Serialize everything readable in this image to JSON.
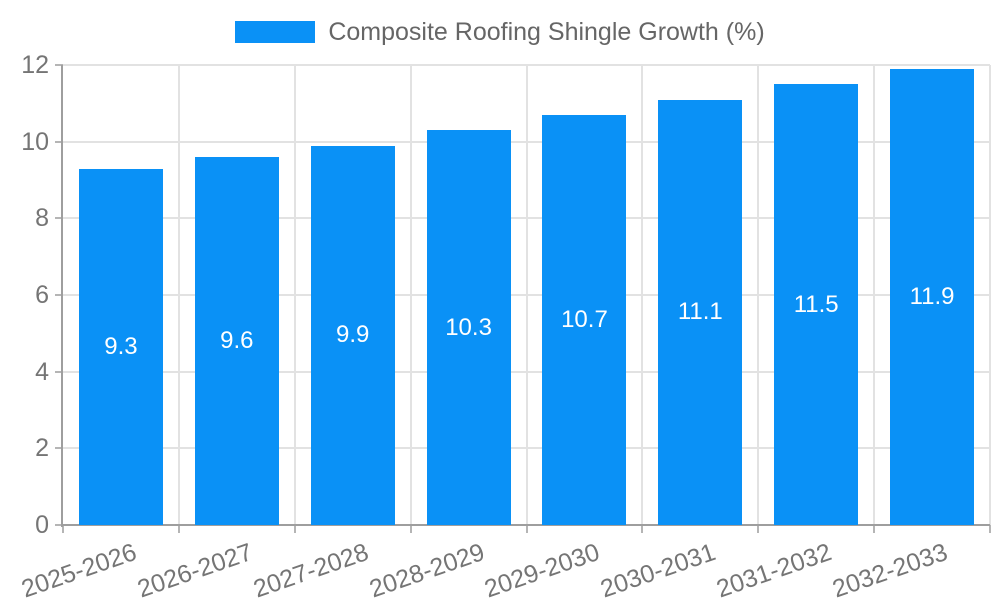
{
  "legend": {
    "label": "Composite Roofing Shingle Growth (%)"
  },
  "chart_data": {
    "type": "bar",
    "title": "Composite Roofing Shingle Growth (%)",
    "legend_position": "top",
    "categories": [
      "2025-2026",
      "2026-2027",
      "2027-2028",
      "2028-2029",
      "2029-2030",
      "2030-2031",
      "2031-2032",
      "2032-2033"
    ],
    "values": [
      9.3,
      9.6,
      9.9,
      10.3,
      10.7,
      11.1,
      11.5,
      11.9
    ],
    "value_labels": [
      "9.3",
      "9.6",
      "9.9",
      "10.3",
      "10.7",
      "11.1",
      "11.5",
      "11.9"
    ],
    "xlabel": "",
    "ylabel": "",
    "ylim": [
      0,
      12
    ],
    "yticks": [
      0,
      2,
      4,
      6,
      8,
      10,
      12
    ],
    "grid": true,
    "x_label_rotation_deg": -19,
    "colors": {
      "bar": "#0a91f6",
      "grid": "#e2e2e2",
      "axis_border": "#9e9e9e",
      "tick": "#b5b5b5",
      "axis_text": "#757575",
      "legend_text": "#666666",
      "value_label_text": "#ffffff",
      "background": "#ffffff"
    }
  }
}
